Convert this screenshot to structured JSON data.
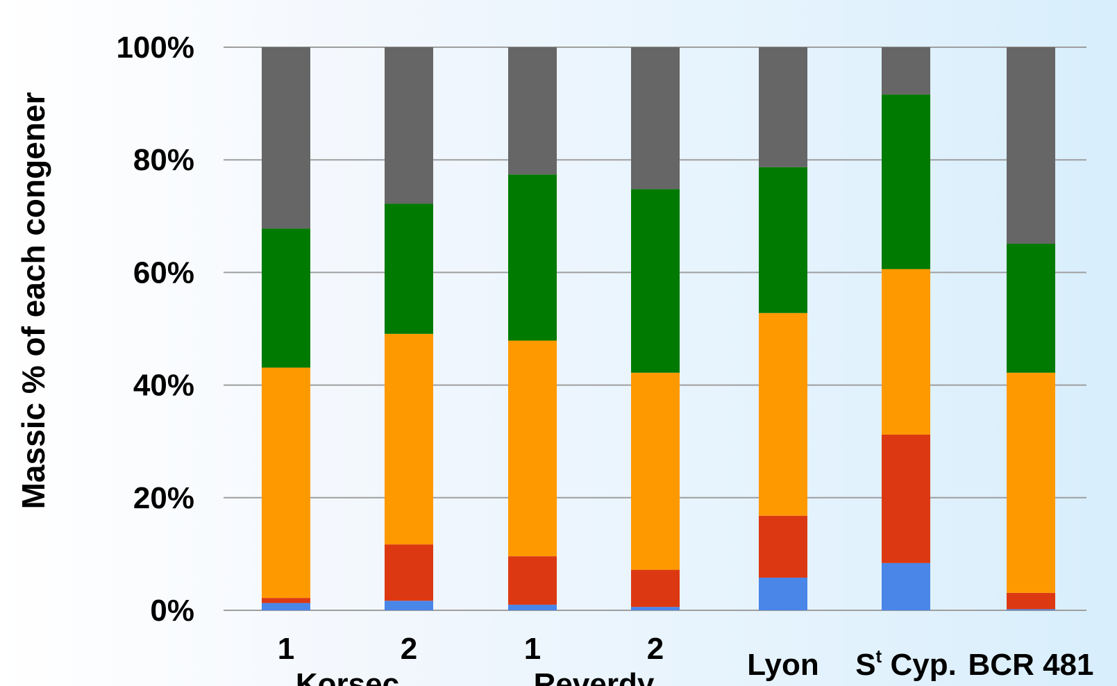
{
  "chart_data": {
    "type": "bar",
    "stacked": true,
    "ylabel": "Massic % of each congener",
    "ylim": [
      0,
      100
    ],
    "y_ticks": [
      "0%",
      "20%",
      "40%",
      "60%",
      "80%",
      "100%"
    ],
    "y_tick_values": [
      0,
      20,
      40,
      60,
      80,
      100
    ],
    "grid": true,
    "legend": "none",
    "categories": [
      "1",
      "2",
      "1",
      "2",
      "Lyon",
      "St Cyp.",
      "BCR 481"
    ],
    "category_labels": [
      {
        "main": "1"
      },
      {
        "main": "2"
      },
      {
        "main": "1"
      },
      {
        "main": "2"
      },
      {
        "main": "Lyon"
      },
      {
        "main": "S",
        "sup": "t",
        "rest": " Cyp."
      },
      {
        "main": "BCR 481"
      }
    ],
    "group_labels": [
      {
        "label": "Korsec",
        "categories": [
          0,
          1
        ]
      },
      {
        "label": "Reverdy",
        "categories": [
          2,
          3
        ]
      }
    ],
    "series": [
      {
        "color": "#4a86e8",
        "values": [
          1.3,
          1.7,
          1.0,
          0.6,
          5.8,
          8.4,
          0.2
        ]
      },
      {
        "color": "#dc3912",
        "values": [
          0.9,
          10.0,
          8.6,
          6.6,
          11.0,
          22.8,
          2.9
        ]
      },
      {
        "color": "#ff9900",
        "values": [
          40.9,
          37.4,
          38.3,
          35.0,
          36.0,
          29.4,
          39.1
        ]
      },
      {
        "color": "#007a00",
        "values": [
          24.7,
          23.1,
          29.5,
          32.6,
          25.9,
          31.0,
          22.9
        ]
      },
      {
        "color": "#666666",
        "values": [
          32.2,
          27.8,
          22.6,
          25.2,
          21.3,
          8.4,
          34.9
        ]
      }
    ]
  }
}
